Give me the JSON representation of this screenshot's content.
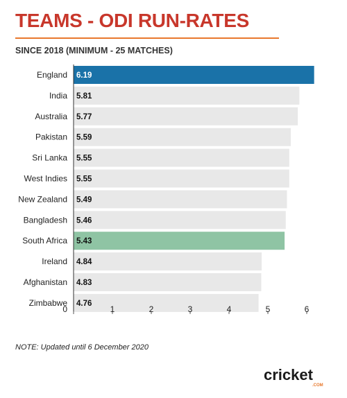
{
  "header": {
    "title": "TEAMS - ODI RUN-RATES",
    "subtitle": "SINCE 2018 (MINIMUM - 25 MATCHES)"
  },
  "footer": {
    "note": "NOTE: Updated until 6 December 2020",
    "logo_text": "cricket",
    "logo_suffix": ".COM"
  },
  "colors": {
    "title": "#c8372b",
    "rule": "#e8782c",
    "bar_default": "#e8e8e8",
    "bar_highlight_primary": "#1a72a8",
    "bar_highlight_secondary": "#8fc4a4"
  },
  "chart_data": {
    "type": "bar",
    "orientation": "horizontal",
    "title": "TEAMS - ODI RUN-RATES",
    "subtitle": "SINCE 2018 (MINIMUM - 25 MATCHES)",
    "categories": [
      "England",
      "India",
      "Australia",
      "Pakistan",
      "Sri Lanka",
      "West Indies",
      "New Zealand",
      "Bangladesh",
      "South Africa",
      "Ireland",
      "Afghanistan",
      "Zimbabwe"
    ],
    "values": [
      6.19,
      5.81,
      5.77,
      5.59,
      5.55,
      5.55,
      5.49,
      5.46,
      5.43,
      4.84,
      4.83,
      4.76
    ],
    "value_labels": [
      "6.19",
      "5.81",
      "5.77",
      "5.59",
      "5.55",
      "5.55",
      "5.49",
      "5.46",
      "5.43",
      "4.84",
      "4.83",
      "4.76"
    ],
    "highlight": {
      "England": "primary",
      "South Africa": "secondary"
    },
    "xlim": [
      0,
      6.2
    ],
    "xticks": [
      "0",
      "1",
      "2",
      "3",
      "4",
      "5",
      "6"
    ],
    "xlabel": "",
    "ylabel": "",
    "grid": false
  }
}
